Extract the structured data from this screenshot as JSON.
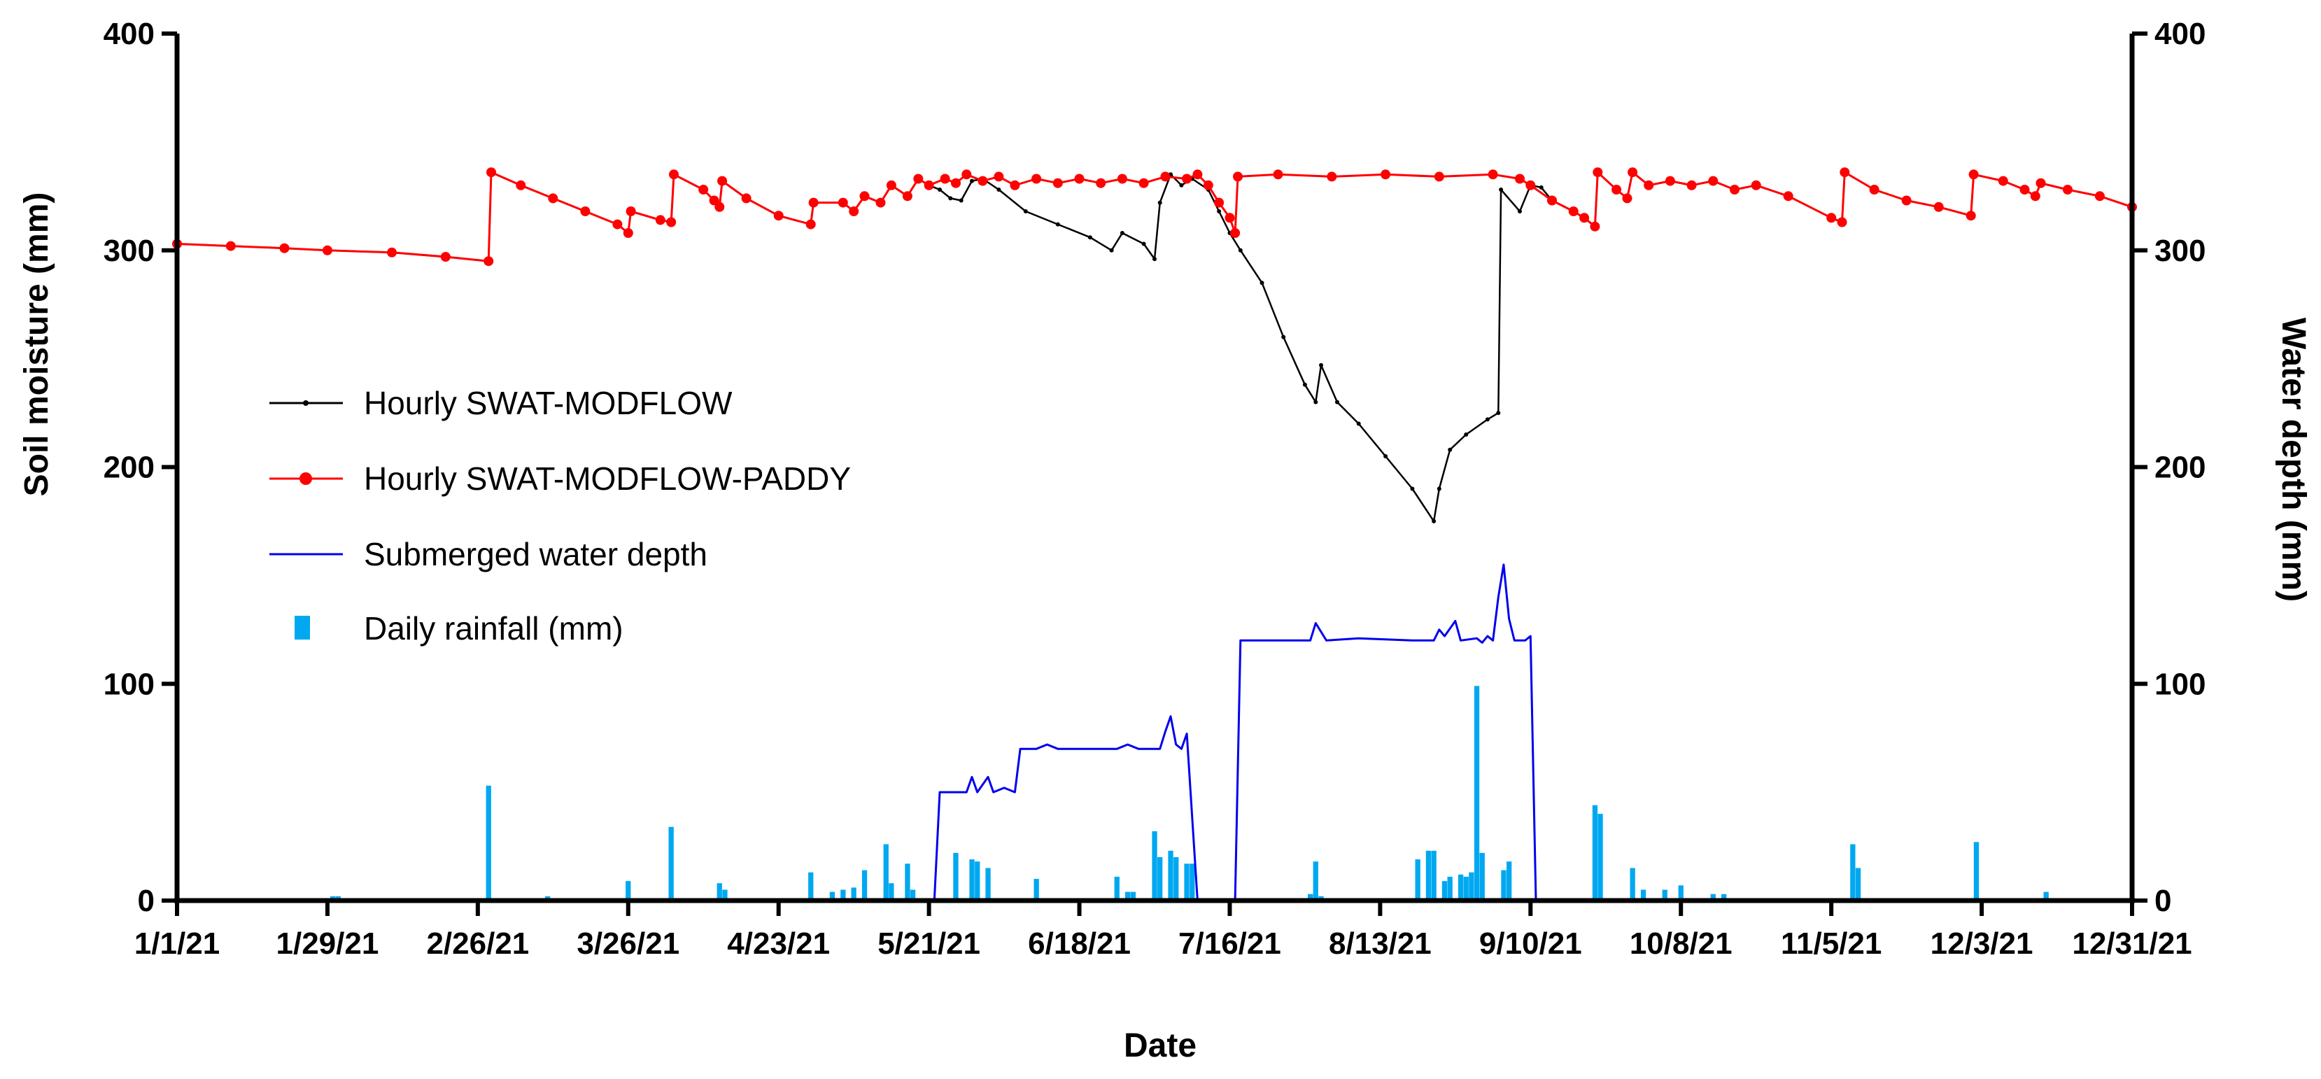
{
  "chart_data": {
    "type": "line",
    "title": "",
    "xlabel": "Date",
    "ylabel": "Soil moisture (mm)",
    "y2label": "Water depth (mm)",
    "xlim": [
      0,
      364
    ],
    "ylim": [
      0,
      400
    ],
    "y2lim": [
      0,
      400
    ],
    "x_tick_labels": [
      "1/1/21",
      "1/29/21",
      "2/26/21",
      "3/26/21",
      "4/23/21",
      "5/21/21",
      "6/18/21",
      "7/16/21",
      "8/13/21",
      "9/10/21",
      "10/8/21",
      "11/5/21",
      "12/3/21",
      "12/31/21"
    ],
    "x_tick_days": [
      0,
      28,
      56,
      84,
      112,
      140,
      168,
      196,
      224,
      252,
      280,
      308,
      336,
      364
    ],
    "y_ticks": [
      0,
      100,
      200,
      300,
      400
    ],
    "y2_ticks": [
      0,
      100,
      200,
      300,
      400
    ],
    "legend": {
      "position": "left-center"
    },
    "colors": {
      "swat_modflow": "#000000",
      "swat_modflow_paddy": "#ff0000",
      "water_depth": "#0000ee",
      "rainfall": "#00a8f0"
    },
    "series": [
      {
        "name": "Hourly SWAT-MODFLOW",
        "key": "swat_modflow",
        "axis": "left",
        "type": "line",
        "points": [
          [
            0,
            303
          ],
          [
            10,
            302
          ],
          [
            20,
            301
          ],
          [
            28,
            300
          ],
          [
            40,
            299
          ],
          [
            50,
            297
          ],
          [
            58,
            295
          ],
          [
            58.5,
            336
          ],
          [
            64,
            330
          ],
          [
            70,
            324
          ],
          [
            76,
            318
          ],
          [
            82,
            312
          ],
          [
            84,
            308
          ],
          [
            84.5,
            318
          ],
          [
            90,
            314
          ],
          [
            92,
            313
          ],
          [
            92.5,
            335
          ],
          [
            98,
            328
          ],
          [
            100,
            323
          ],
          [
            101,
            320
          ],
          [
            101.5,
            332
          ],
          [
            106,
            324
          ],
          [
            112,
            316
          ],
          [
            118,
            312
          ],
          [
            118.5,
            322
          ],
          [
            124,
            322
          ],
          [
            126,
            318
          ],
          [
            128,
            325
          ],
          [
            131,
            322
          ],
          [
            133,
            330
          ],
          [
            136,
            325
          ],
          [
            138,
            333
          ],
          [
            140,
            330
          ],
          [
            142,
            328
          ],
          [
            144,
            324
          ],
          [
            146,
            323
          ],
          [
            148,
            332
          ],
          [
            150,
            333
          ],
          [
            153,
            328
          ],
          [
            158,
            318
          ],
          [
            164,
            312
          ],
          [
            170,
            306
          ],
          [
            174,
            300
          ],
          [
            176,
            308
          ],
          [
            180,
            303
          ],
          [
            182,
            296
          ],
          [
            183,
            322
          ],
          [
            185,
            335
          ],
          [
            187,
            330
          ],
          [
            189,
            333
          ],
          [
            192,
            328
          ],
          [
            194,
            318
          ],
          [
            196,
            308
          ],
          [
            198,
            300
          ],
          [
            202,
            285
          ],
          [
            206,
            260
          ],
          [
            210,
            238
          ],
          [
            212,
            230
          ],
          [
            213,
            247
          ],
          [
            216,
            230
          ],
          [
            220,
            220
          ],
          [
            225,
            205
          ],
          [
            230,
            190
          ],
          [
            234,
            175
          ],
          [
            235,
            190
          ],
          [
            237,
            208
          ],
          [
            240,
            215
          ],
          [
            244,
            222
          ],
          [
            246,
            225
          ],
          [
            246.5,
            328
          ],
          [
            250,
            318
          ],
          [
            252,
            330
          ],
          [
            254,
            329
          ],
          [
            256,
            323
          ],
          [
            260,
            318
          ],
          [
            262,
            315
          ],
          [
            264,
            311
          ],
          [
            264.5,
            336
          ],
          [
            268,
            328
          ],
          [
            270,
            324
          ],
          [
            271,
            336
          ],
          [
            274,
            330
          ],
          [
            278,
            332
          ],
          [
            282,
            330
          ],
          [
            286,
            332
          ],
          [
            290,
            328
          ],
          [
            294,
            330
          ],
          [
            300,
            325
          ],
          [
            308,
            315
          ],
          [
            310,
            313
          ],
          [
            310.5,
            336
          ],
          [
            316,
            328
          ],
          [
            322,
            323
          ],
          [
            328,
            320
          ],
          [
            334,
            316
          ],
          [
            334.5,
            335
          ],
          [
            340,
            332
          ],
          [
            344,
            328
          ],
          [
            346,
            325
          ],
          [
            347,
            331
          ],
          [
            352,
            328
          ],
          [
            358,
            325
          ],
          [
            364,
            320
          ]
        ]
      },
      {
        "name": "Hourly SWAT-MODFLOW-PADDY",
        "key": "swat_modflow_paddy",
        "axis": "left",
        "type": "line",
        "points": [
          [
            0,
            303
          ],
          [
            10,
            302
          ],
          [
            20,
            301
          ],
          [
            28,
            300
          ],
          [
            40,
            299
          ],
          [
            50,
            297
          ],
          [
            58,
            295
          ],
          [
            58.5,
            336
          ],
          [
            64,
            330
          ],
          [
            70,
            324
          ],
          [
            76,
            318
          ],
          [
            82,
            312
          ],
          [
            84,
            308
          ],
          [
            84.5,
            318
          ],
          [
            90,
            314
          ],
          [
            92,
            313
          ],
          [
            92.5,
            335
          ],
          [
            98,
            328
          ],
          [
            100,
            323
          ],
          [
            101,
            320
          ],
          [
            101.5,
            332
          ],
          [
            106,
            324
          ],
          [
            112,
            316
          ],
          [
            118,
            312
          ],
          [
            118.5,
            322
          ],
          [
            124,
            322
          ],
          [
            126,
            318
          ],
          [
            128,
            325
          ],
          [
            131,
            322
          ],
          [
            133,
            330
          ],
          [
            136,
            325
          ],
          [
            138,
            333
          ],
          [
            140,
            330
          ],
          [
            143,
            333
          ],
          [
            145,
            331
          ],
          [
            147,
            335
          ],
          [
            150,
            332
          ],
          [
            153,
            334
          ],
          [
            156,
            330
          ],
          [
            160,
            333
          ],
          [
            164,
            331
          ],
          [
            168,
            333
          ],
          [
            172,
            331
          ],
          [
            176,
            333
          ],
          [
            180,
            331
          ],
          [
            184,
            334
          ],
          [
            188,
            333
          ],
          [
            190,
            335
          ],
          [
            192,
            330
          ],
          [
            194,
            322
          ],
          [
            196,
            315
          ],
          [
            197,
            308
          ],
          [
            197.5,
            334
          ],
          [
            205,
            335
          ],
          [
            215,
            334
          ],
          [
            225,
            335
          ],
          [
            235,
            334
          ],
          [
            245,
            335
          ],
          [
            250,
            333
          ],
          [
            252,
            330
          ],
          [
            256,
            323
          ],
          [
            260,
            318
          ],
          [
            262,
            315
          ],
          [
            264,
            311
          ],
          [
            264.5,
            336
          ],
          [
            268,
            328
          ],
          [
            270,
            324
          ],
          [
            271,
            336
          ],
          [
            274,
            330
          ],
          [
            278,
            332
          ],
          [
            282,
            330
          ],
          [
            286,
            332
          ],
          [
            290,
            328
          ],
          [
            294,
            330
          ],
          [
            300,
            325
          ],
          [
            308,
            315
          ],
          [
            310,
            313
          ],
          [
            310.5,
            336
          ],
          [
            316,
            328
          ],
          [
            322,
            323
          ],
          [
            328,
            320
          ],
          [
            334,
            316
          ],
          [
            334.5,
            335
          ],
          [
            340,
            332
          ],
          [
            344,
            328
          ],
          [
            346,
            325
          ],
          [
            347,
            331
          ],
          [
            352,
            328
          ],
          [
            358,
            325
          ],
          [
            364,
            320
          ]
        ]
      },
      {
        "name": "Submerged water depth",
        "key": "water_depth",
        "axis": "right",
        "type": "line",
        "points": [
          [
            0,
            0
          ],
          [
            141,
            0
          ],
          [
            142,
            50
          ],
          [
            147,
            50
          ],
          [
            148,
            57
          ],
          [
            149,
            50
          ],
          [
            151,
            57
          ],
          [
            152,
            50
          ],
          [
            154,
            52
          ],
          [
            156,
            50
          ],
          [
            157,
            70
          ],
          [
            160,
            70
          ],
          [
            162,
            72
          ],
          [
            164,
            70
          ],
          [
            175,
            70
          ],
          [
            177,
            72
          ],
          [
            179,
            70
          ],
          [
            183,
            70
          ],
          [
            184,
            78
          ],
          [
            185,
            85
          ],
          [
            186,
            72
          ],
          [
            187,
            70
          ],
          [
            188,
            77
          ],
          [
            190,
            0
          ],
          [
            197,
            0
          ],
          [
            198,
            120
          ],
          [
            211,
            120
          ],
          [
            212,
            128
          ],
          [
            214,
            120
          ],
          [
            220,
            121
          ],
          [
            230,
            120
          ],
          [
            234,
            120
          ],
          [
            235,
            125
          ],
          [
            236,
            122
          ],
          [
            238,
            129
          ],
          [
            239,
            120
          ],
          [
            242,
            121
          ],
          [
            243,
            119
          ],
          [
            244,
            122
          ],
          [
            245,
            120
          ],
          [
            246,
            140
          ],
          [
            247,
            155
          ],
          [
            248,
            130
          ],
          [
            249,
            120
          ],
          [
            251,
            120
          ],
          [
            252,
            122
          ],
          [
            253,
            0
          ],
          [
            364,
            0
          ]
        ]
      },
      {
        "name": "Daily rainfall (mm)",
        "key": "rainfall",
        "axis": "right",
        "type": "bar",
        "points": [
          [
            29,
            2
          ],
          [
            30,
            2
          ],
          [
            31,
            1
          ],
          [
            58,
            53
          ],
          [
            69,
            2
          ],
          [
            84,
            9
          ],
          [
            92,
            34
          ],
          [
            101,
            8
          ],
          [
            102,
            5
          ],
          [
            118,
            13
          ],
          [
            122,
            4
          ],
          [
            124,
            5
          ],
          [
            126,
            6
          ],
          [
            128,
            14
          ],
          [
            132,
            26
          ],
          [
            133,
            8
          ],
          [
            136,
            17
          ],
          [
            137,
            5
          ],
          [
            145,
            22
          ],
          [
            148,
            19
          ],
          [
            149,
            18
          ],
          [
            151,
            15
          ],
          [
            160,
            10
          ],
          [
            175,
            11
          ],
          [
            177,
            4
          ],
          [
            178,
            4
          ],
          [
            182,
            32
          ],
          [
            183,
            20
          ],
          [
            185,
            23
          ],
          [
            186,
            20
          ],
          [
            188,
            17
          ],
          [
            189,
            17
          ],
          [
            211,
            3
          ],
          [
            212,
            18
          ],
          [
            213,
            2
          ],
          [
            216,
            1
          ],
          [
            231,
            19
          ],
          [
            233,
            23
          ],
          [
            234,
            23
          ],
          [
            236,
            9
          ],
          [
            237,
            11
          ],
          [
            239,
            12
          ],
          [
            240,
            11
          ],
          [
            241,
            13
          ],
          [
            242,
            99
          ],
          [
            243,
            22
          ],
          [
            247,
            14
          ],
          [
            248,
            18
          ],
          [
            262,
            1
          ],
          [
            264,
            44
          ],
          [
            265,
            40
          ],
          [
            271,
            15
          ],
          [
            273,
            5
          ],
          [
            277,
            5
          ],
          [
            280,
            7
          ],
          [
            286,
            3
          ],
          [
            288,
            3
          ],
          [
            312,
            26
          ],
          [
            313,
            15
          ],
          [
            335,
            27
          ],
          [
            348,
            4
          ]
        ]
      }
    ]
  }
}
